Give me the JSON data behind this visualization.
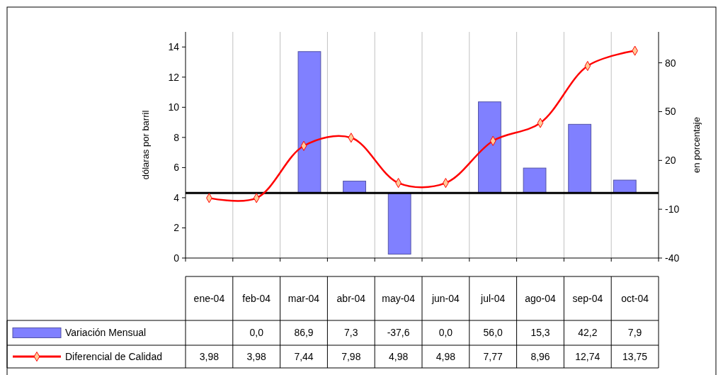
{
  "chart_data": {
    "type": "bar",
    "ylabel": "dólaras por barril",
    "y2label": "en porcentaje",
    "categories": [
      "ene-04",
      "feb-04",
      "mar-04",
      "abr-04",
      "may-04",
      "jun-04",
      "jul-04",
      "ago-04",
      "sep-04",
      "oct-04"
    ],
    "series": [
      {
        "name": "Variación Mensual",
        "axis": "y2",
        "color": "#8080ff",
        "values": [
          null,
          0,
          86.9,
          7.3,
          -37.6,
          0,
          56.0,
          15.3,
          42.2,
          7.9
        ],
        "value_labels": [
          null,
          "0,0",
          "86,9",
          "7,3",
          "-37,6",
          "0,0",
          "56,0",
          "15,3",
          "42,2",
          "7,9"
        ]
      },
      {
        "name": "Diferencial de Calidad",
        "type": "line",
        "axis": "y",
        "color": "#ff0000",
        "marker": "diamond",
        "values": [
          3.98,
          3.98,
          7.44,
          7.98,
          4.98,
          4.98,
          7.77,
          8.96,
          12.74,
          13.75
        ],
        "value_labels": [
          "3,98",
          "3,98",
          "7,44",
          "7,98",
          "4,98",
          "4,98",
          "7,77",
          "8,96",
          "12,74",
          "13,75"
        ]
      }
    ],
    "ylim": [
      0,
      15
    ],
    "yticks": [
      0,
      2,
      4,
      6,
      8,
      10,
      12,
      14
    ],
    "y2lim": [
      -40,
      99
    ],
    "y2ticks": [
      -40,
      -10,
      20,
      50,
      80
    ],
    "ref_lines": [
      {
        "axis": "y2",
        "value": 0,
        "color": "#000000"
      }
    ],
    "grid": "x",
    "legend": "bottom"
  }
}
